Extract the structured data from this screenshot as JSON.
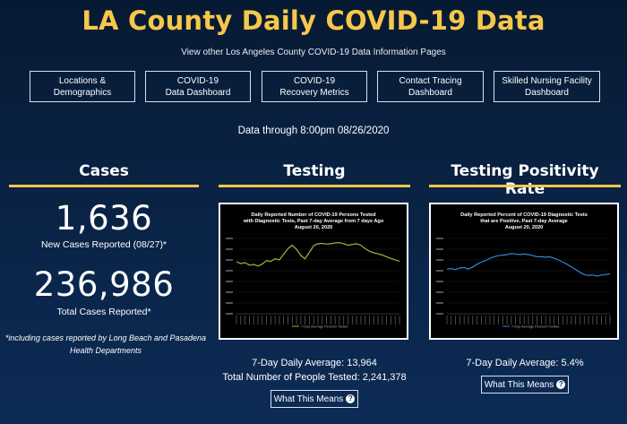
{
  "header": {
    "title": "LA County Daily COVID-19 Data",
    "subtitle": "View other Los Angeles County COVID-19 Data Information Pages"
  },
  "nav": [
    {
      "label": "Locations &\nDemographics"
    },
    {
      "label": "COVID-19\nData Dashboard"
    },
    {
      "label": "COVID-19\nRecovery Metrics"
    },
    {
      "label": "Contact Tracing\nDashboard"
    },
    {
      "label": "Skilled Nursing Facility\nDashboard"
    }
  ],
  "data_through": "Data through 8:00pm 08/26/2020",
  "cases": {
    "heading": "Cases",
    "new_cases": "1,636",
    "new_cases_label": "New Cases Reported (08/27)*",
    "total_cases": "236,986",
    "total_cases_label": "Total Cases Reported*",
    "footnote": "*including cases reported by Long Beach and Pasadena Health Departments"
  },
  "testing": {
    "heading": "Testing",
    "avg_line": "7-Day Daily Average: 13,964",
    "total_line": "Total Number of People Tested: 2,241,378",
    "button": "What This Means",
    "button_icon": "question-circle-icon"
  },
  "positivity": {
    "heading": "Testing Positivity Rate",
    "avg_line": "7-Day Daily Average: 5.4%",
    "button": "What This Means",
    "button_icon": "question-circle-icon"
  },
  "colors": {
    "title": "#f7c74a",
    "testing_line": "#9fb536",
    "positivity_line": "#2f86d8"
  },
  "chart_data": [
    {
      "type": "line",
      "title": "Daily Reported Number of COVID-19 Persons Tested with Diagnostic Tests, Past 7-day Average from 7 days Ago August 20, 2020",
      "title_lines": [
        "Daily Reported Number of COVID-19 Persons Tested",
        "with Diagnostic Tests, Past 7-day Average from 7 days Ago",
        "August 20, 2020"
      ],
      "legend": "7-Day Average Persons Tested",
      "ylim": [
        0,
        20000
      ],
      "series": [
        {
          "name": "7-Day Average Persons Tested",
          "values": [
            13800,
            13300,
            13600,
            12900,
            13100,
            12700,
            13200,
            14100,
            13900,
            14600,
            14300,
            15800,
            17300,
            18200,
            17100,
            15500,
            14600,
            16300,
            18100,
            18600,
            18700,
            18500,
            18600,
            18800,
            18900,
            18600,
            18200,
            18400,
            18600,
            18200,
            17300,
            16600,
            16200,
            15900,
            15600,
            15100,
            14700,
            14300,
            13964
          ]
        }
      ]
    },
    {
      "type": "line",
      "title": "Daily Reported Percent of COVID-19 Diagnostic Tests that are Positive, Past 7-day Average August 20, 2020",
      "title_lines": [
        "Daily Reported Percent of COVID-19 Diagnostic Tests",
        "that are Positive, Past 7-day Average",
        "August 20, 2020"
      ],
      "legend": "7-Day Average Percent Positive",
      "ylim": [
        0,
        14
      ],
      "series": [
        {
          "name": "7-Day Average Percent Positive",
          "values": [
            8.3,
            8.4,
            8.2,
            8.5,
            8.6,
            8.3,
            8.7,
            9.2,
            9.6,
            9.9,
            10.3,
            10.6,
            10.8,
            10.9,
            11.0,
            11.2,
            11.1,
            11.0,
            11.1,
            11.0,
            10.8,
            10.6,
            10.6,
            10.5,
            10.6,
            10.3,
            10.0,
            9.6,
            9.2,
            8.7,
            8.2,
            7.7,
            7.3,
            7.1,
            7.2,
            7.0,
            7.2,
            7.3,
            7.4
          ]
        }
      ]
    }
  ]
}
